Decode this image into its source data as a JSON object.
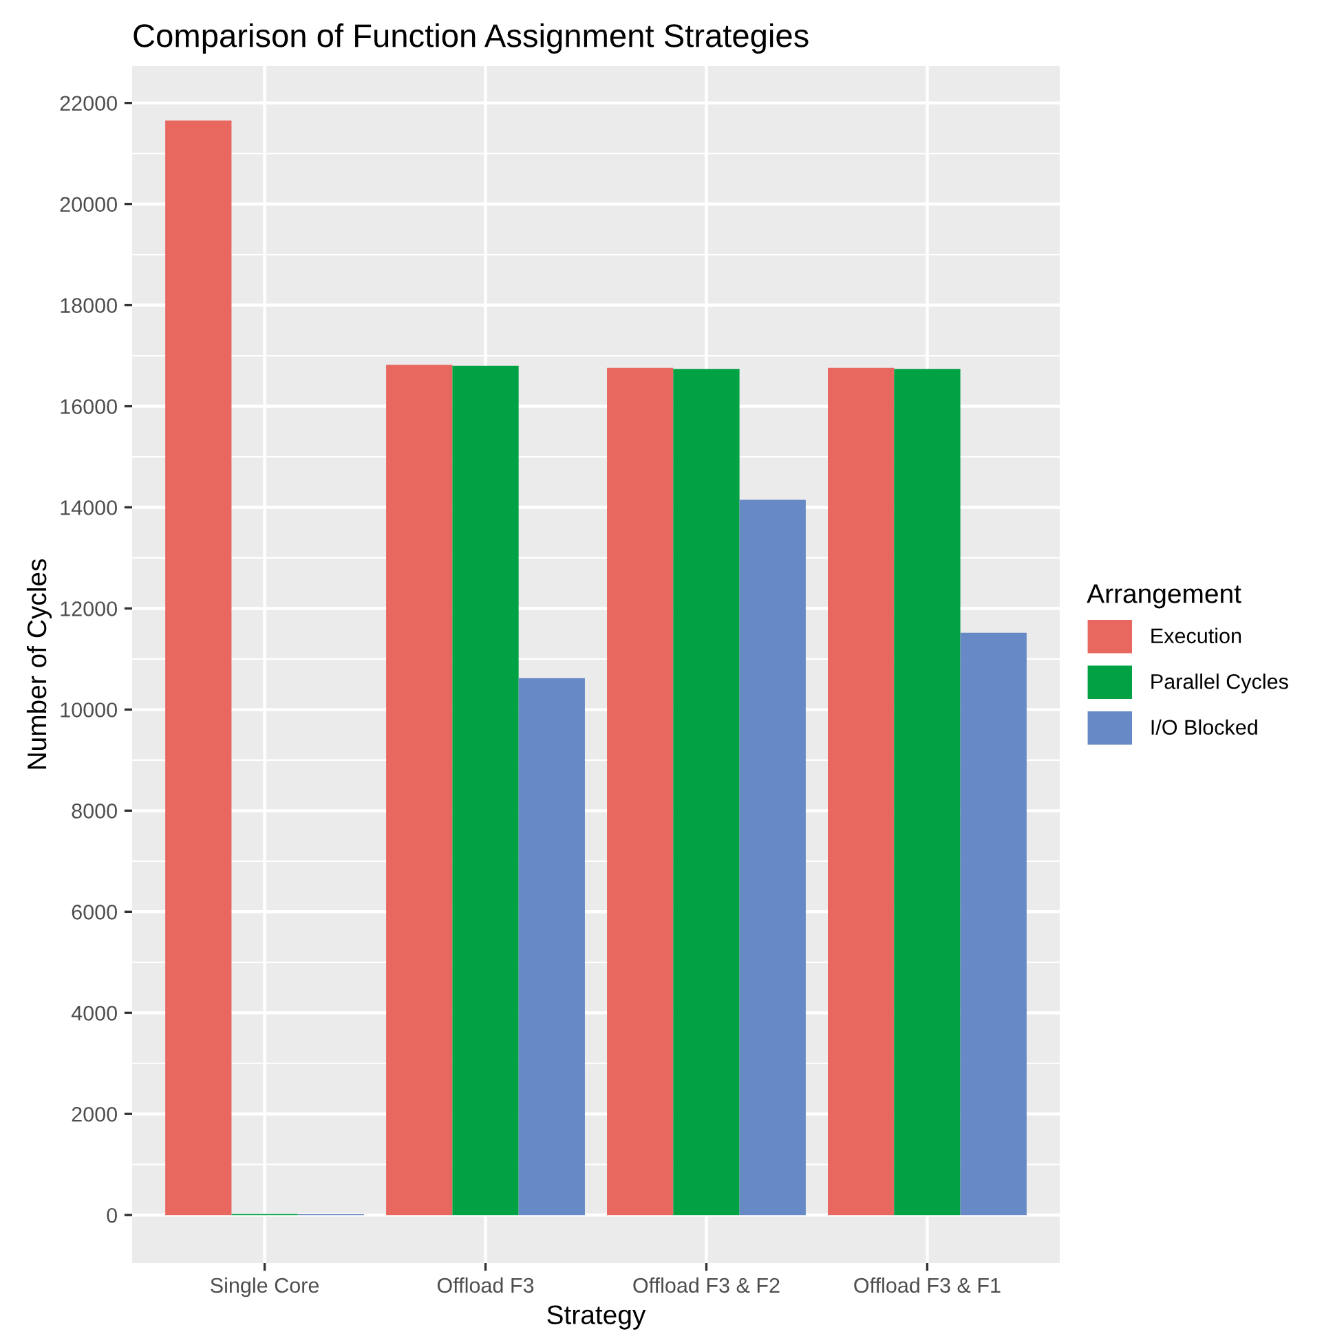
{
  "chart_data": {
    "type": "bar",
    "title": "Comparison of Function Assignment Strategies",
    "xlabel": "Strategy",
    "ylabel": "Number of Cycles",
    "legend_title": "Arrangement",
    "categories": [
      "Single Core",
      "Offload F3",
      "Offload F3 & F2",
      "Offload F3 & F1"
    ],
    "series": [
      {
        "name": "Execution",
        "color": "#e8685f",
        "values": [
          21650,
          16820,
          16760,
          16760
        ]
      },
      {
        "name": "Parallel Cycles",
        "color": "#00a243",
        "values": [
          20,
          16800,
          16740,
          16740
        ]
      },
      {
        "name": "I/O Blocked",
        "color": "#6789c5",
        "values": [
          15,
          10620,
          14150,
          11520
        ]
      }
    ],
    "ylim": [
      -950,
      22730
    ],
    "yticks": [
      0,
      2000,
      4000,
      6000,
      8000,
      10000,
      12000,
      14000,
      16000,
      18000,
      20000,
      22000
    ],
    "grid": true,
    "legend": "right"
  }
}
